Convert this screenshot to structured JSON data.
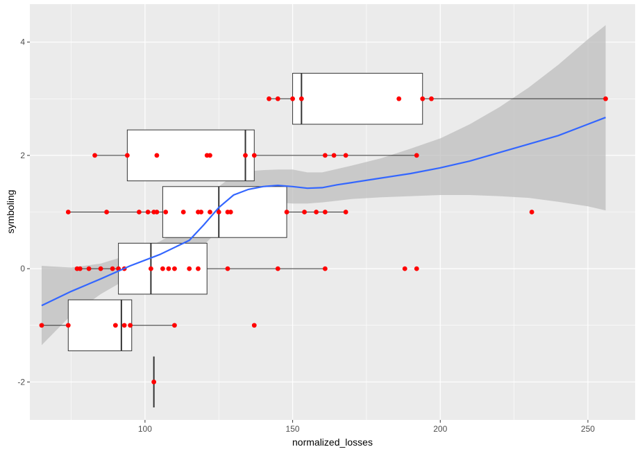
{
  "chart_data": {
    "type": "scatter",
    "xlabel": "normalized_losses",
    "ylabel": "symboling",
    "xlim": [
      61,
      266
    ],
    "ylim": [
      -2.67,
      4.67
    ],
    "x_ticks": [
      100,
      150,
      200,
      250
    ],
    "y_ticks": [
      -2,
      0,
      2,
      4
    ],
    "x_minor_ticks": [
      75,
      125,
      175,
      225
    ],
    "y_minor_ticks": [
      -1,
      1,
      3
    ],
    "grid": true,
    "legend": "none",
    "colors": {
      "panel": "#ebebeb",
      "grid": "#ffffff",
      "points": "#ff0000",
      "smooth_line": "#3366ff",
      "ribbon": "#bdbdbd",
      "box_fill": "#ffffff",
      "box_stroke": "#333333"
    },
    "boxplots": [
      {
        "symboling": -2,
        "whisker_low": 103,
        "q1": 103,
        "median": 103,
        "q3": 103,
        "whisker_high": 103,
        "outliers": []
      },
      {
        "symboling": -1,
        "whisker_low": 65,
        "q1": 74,
        "median": 92,
        "q3": 95.5,
        "whisker_high": 110,
        "outliers": [
          137
        ]
      },
      {
        "symboling": 0,
        "whisker_low": 77,
        "q1": 91,
        "median": 102,
        "q3": 121,
        "whisker_high": 161,
        "outliers": [
          188,
          192
        ]
      },
      {
        "symboling": 1,
        "whisker_low": 74,
        "q1": 106,
        "median": 125,
        "q3": 148,
        "whisker_high": 168,
        "outliers": [
          231
        ]
      },
      {
        "symboling": 2,
        "whisker_low": 83,
        "q1": 94,
        "median": 134,
        "q3": 137,
        "whisker_high": 192,
        "outliers": []
      },
      {
        "symboling": 3,
        "whisker_low": 142,
        "q1": 150,
        "median": 153,
        "q3": 194,
        "whisker_high": 256,
        "outliers": []
      }
    ],
    "points": [
      {
        "x": 103,
        "y": -2
      },
      {
        "x": 65,
        "y": -1
      },
      {
        "x": 74,
        "y": -1
      },
      {
        "x": 90,
        "y": -1
      },
      {
        "x": 93,
        "y": -1
      },
      {
        "x": 95,
        "y": -1
      },
      {
        "x": 110,
        "y": -1
      },
      {
        "x": 137,
        "y": -1
      },
      {
        "x": 77,
        "y": 0
      },
      {
        "x": 78,
        "y": 0
      },
      {
        "x": 81,
        "y": 0
      },
      {
        "x": 85,
        "y": 0
      },
      {
        "x": 89,
        "y": 0
      },
      {
        "x": 91,
        "y": 0
      },
      {
        "x": 93,
        "y": 0
      },
      {
        "x": 102,
        "y": 0
      },
      {
        "x": 106,
        "y": 0
      },
      {
        "x": 108,
        "y": 0
      },
      {
        "x": 110,
        "y": 0
      },
      {
        "x": 115,
        "y": 0
      },
      {
        "x": 118,
        "y": 0
      },
      {
        "x": 128,
        "y": 0
      },
      {
        "x": 145,
        "y": 0
      },
      {
        "x": 161,
        "y": 0
      },
      {
        "x": 188,
        "y": 0
      },
      {
        "x": 192,
        "y": 0
      },
      {
        "x": 74,
        "y": 1
      },
      {
        "x": 87,
        "y": 1
      },
      {
        "x": 98,
        "y": 1
      },
      {
        "x": 101,
        "y": 1
      },
      {
        "x": 103,
        "y": 1
      },
      {
        "x": 104,
        "y": 1
      },
      {
        "x": 107,
        "y": 1
      },
      {
        "x": 113,
        "y": 1
      },
      {
        "x": 118,
        "y": 1
      },
      {
        "x": 119,
        "y": 1
      },
      {
        "x": 122,
        "y": 1
      },
      {
        "x": 125,
        "y": 1
      },
      {
        "x": 128,
        "y": 1
      },
      {
        "x": 129,
        "y": 1
      },
      {
        "x": 148,
        "y": 1
      },
      {
        "x": 154,
        "y": 1
      },
      {
        "x": 158,
        "y": 1
      },
      {
        "x": 161,
        "y": 1
      },
      {
        "x": 168,
        "y": 1
      },
      {
        "x": 231,
        "y": 1
      },
      {
        "x": 83,
        "y": 2
      },
      {
        "x": 94,
        "y": 2
      },
      {
        "x": 104,
        "y": 2
      },
      {
        "x": 121,
        "y": 2
      },
      {
        "x": 122,
        "y": 2
      },
      {
        "x": 134,
        "y": 2
      },
      {
        "x": 137,
        "y": 2
      },
      {
        "x": 161,
        "y": 2
      },
      {
        "x": 164,
        "y": 2
      },
      {
        "x": 168,
        "y": 2
      },
      {
        "x": 192,
        "y": 2
      },
      {
        "x": 142,
        "y": 3
      },
      {
        "x": 145,
        "y": 3
      },
      {
        "x": 150,
        "y": 3
      },
      {
        "x": 153,
        "y": 3
      },
      {
        "x": 186,
        "y": 3
      },
      {
        "x": 194,
        "y": 3
      },
      {
        "x": 197,
        "y": 3
      },
      {
        "x": 256,
        "y": 3
      }
    ],
    "smooth": {
      "method": "loess",
      "x": [
        65,
        75,
        85,
        95,
        105,
        115,
        120,
        125,
        130,
        135,
        140,
        145,
        150,
        155,
        160,
        165,
        170,
        180,
        190,
        200,
        210,
        220,
        230,
        240,
        250,
        256
      ],
      "y": [
        -0.65,
        -0.4,
        -0.18,
        0.05,
        0.25,
        0.5,
        0.78,
        1.08,
        1.3,
        1.4,
        1.45,
        1.47,
        1.45,
        1.42,
        1.43,
        1.48,
        1.52,
        1.6,
        1.68,
        1.78,
        1.9,
        2.05,
        2.2,
        2.35,
        2.55,
        2.67
      ],
      "lower": [
        -1.35,
        -0.82,
        -0.45,
        -0.15,
        0.02,
        0.22,
        0.42,
        0.68,
        0.92,
        1.08,
        1.15,
        1.17,
        1.15,
        1.15,
        1.17,
        1.2,
        1.23,
        1.26,
        1.28,
        1.3,
        1.3,
        1.28,
        1.25,
        1.18,
        1.1,
        1.03
      ],
      "upper": [
        0.05,
        0.02,
        0.09,
        0.25,
        0.48,
        0.78,
        1.1,
        1.45,
        1.65,
        1.72,
        1.74,
        1.75,
        1.75,
        1.7,
        1.7,
        1.76,
        1.82,
        1.95,
        2.12,
        2.3,
        2.55,
        2.85,
        3.2,
        3.6,
        4.05,
        4.3
      ]
    }
  }
}
